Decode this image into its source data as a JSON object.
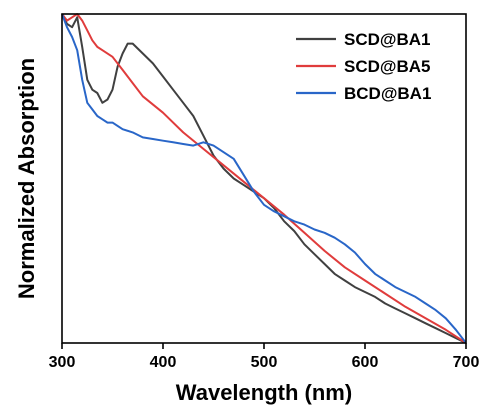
{
  "chart_data": {
    "type": "line",
    "xlabel": "Wavelength (nm)",
    "ylabel": "Normalized Absorption",
    "xlim": [
      300,
      700
    ],
    "ylim": [
      0,
      1
    ],
    "xticks": [
      300,
      400,
      500,
      600,
      700
    ],
    "yticks_shown": false,
    "grid": false,
    "legend_position": "top-right",
    "series": [
      {
        "name": "SCD@BA1",
        "color": "#404040",
        "x": [
          300,
          305,
          310,
          315,
          320,
          325,
          330,
          335,
          340,
          345,
          350,
          355,
          360,
          365,
          370,
          380,
          390,
          400,
          410,
          420,
          430,
          440,
          450,
          460,
          470,
          480,
          490,
          500,
          510,
          520,
          530,
          540,
          550,
          560,
          570,
          580,
          590,
          600,
          610,
          620,
          630,
          640,
          650,
          660,
          670,
          680,
          690,
          700
        ],
        "y": [
          1.0,
          0.97,
          0.96,
          0.99,
          0.9,
          0.8,
          0.77,
          0.76,
          0.73,
          0.74,
          0.77,
          0.84,
          0.88,
          0.91,
          0.91,
          0.88,
          0.85,
          0.81,
          0.77,
          0.73,
          0.69,
          0.63,
          0.57,
          0.53,
          0.5,
          0.48,
          0.46,
          0.44,
          0.41,
          0.37,
          0.34,
          0.3,
          0.27,
          0.24,
          0.21,
          0.19,
          0.17,
          0.155,
          0.14,
          0.12,
          0.105,
          0.09,
          0.075,
          0.06,
          0.045,
          0.03,
          0.015,
          0.0
        ]
      },
      {
        "name": "SCD@BA5",
        "color": "#e03c3c",
        "x": [
          300,
          305,
          310,
          315,
          320,
          325,
          330,
          335,
          340,
          350,
          360,
          370,
          380,
          400,
          420,
          440,
          460,
          480,
          500,
          520,
          540,
          560,
          580,
          600,
          620,
          640,
          660,
          680,
          700
        ],
        "y": [
          1.0,
          0.98,
          0.99,
          1.0,
          0.98,
          0.95,
          0.92,
          0.9,
          0.89,
          0.87,
          0.83,
          0.79,
          0.75,
          0.7,
          0.64,
          0.59,
          0.54,
          0.49,
          0.44,
          0.39,
          0.335,
          0.28,
          0.23,
          0.19,
          0.15,
          0.11,
          0.075,
          0.04,
          0.0
        ]
      },
      {
        "name": "BCD@BA1",
        "color": "#2966c8",
        "x": [
          300,
          305,
          310,
          315,
          320,
          325,
          330,
          335,
          340,
          345,
          350,
          360,
          370,
          380,
          390,
          400,
          410,
          420,
          430,
          440,
          450,
          460,
          470,
          480,
          490,
          500,
          510,
          520,
          530,
          540,
          550,
          560,
          570,
          580,
          590,
          600,
          610,
          620,
          630,
          640,
          650,
          660,
          670,
          680,
          690,
          700
        ],
        "y": [
          1.0,
          0.96,
          0.93,
          0.89,
          0.8,
          0.73,
          0.71,
          0.69,
          0.68,
          0.67,
          0.67,
          0.65,
          0.64,
          0.625,
          0.62,
          0.615,
          0.61,
          0.605,
          0.6,
          0.61,
          0.6,
          0.58,
          0.56,
          0.51,
          0.46,
          0.42,
          0.4,
          0.385,
          0.37,
          0.36,
          0.345,
          0.335,
          0.32,
          0.3,
          0.275,
          0.24,
          0.21,
          0.19,
          0.17,
          0.155,
          0.14,
          0.12,
          0.1,
          0.075,
          0.04,
          0.0
        ]
      }
    ]
  }
}
